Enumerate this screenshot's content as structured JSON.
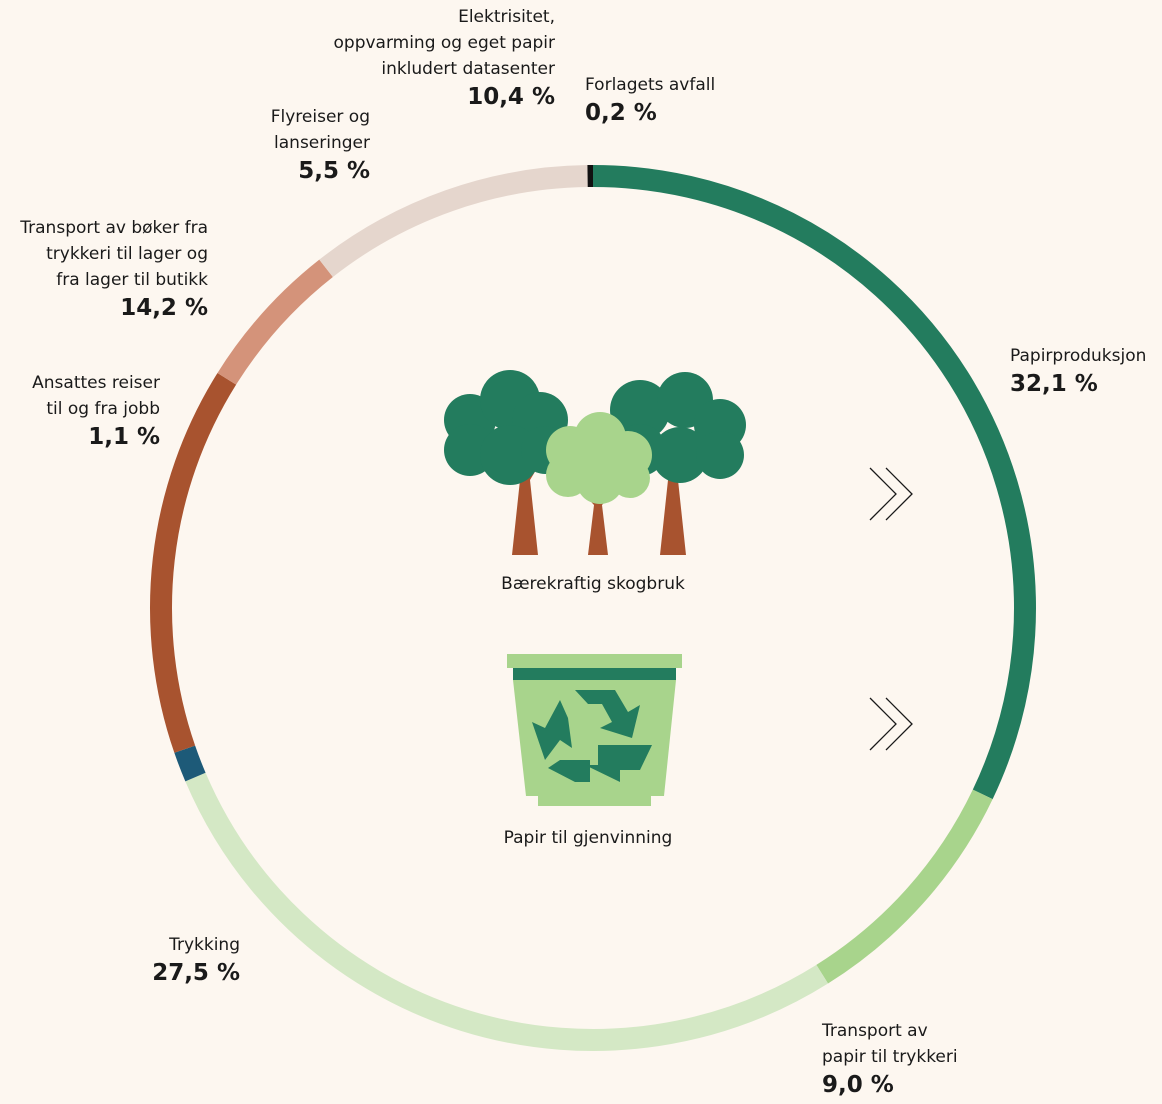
{
  "chart_data": {
    "type": "donut",
    "categories": [
      "Papirproduksjon",
      "Transport av\npapir til trykkeri",
      "Trykking",
      "Ansattes reiser\ntil og fra jobb",
      "Transport av bøker fra\ntrykkeri til lager og\nfra lager til butikk",
      "Flyreiser og\nlanseringer",
      "Elektrisitet,\noppvarming og eget papir\ninkludert datasenter",
      "Forlagets avfall"
    ],
    "values": [
      32.1,
      9.0,
      27.5,
      1.1,
      14.2,
      5.5,
      10.4,
      0.2
    ],
    "value_labels": [
      "32,1 %",
      "9,0 %",
      "27,5 %",
      "1,1 %",
      "14,2 %",
      "5,5 %",
      "10,4 %",
      "0,2 %"
    ],
    "colors": [
      "#237c5e",
      "#a8d48c",
      "#d4e8c5",
      "#1d5a78",
      "#a8532f",
      "#d4937a",
      "#e5d6cd",
      "#111111"
    ],
    "annotations": [
      "Bærekraftig skogbruk",
      "Papir til gjenvinning"
    ]
  }
}
